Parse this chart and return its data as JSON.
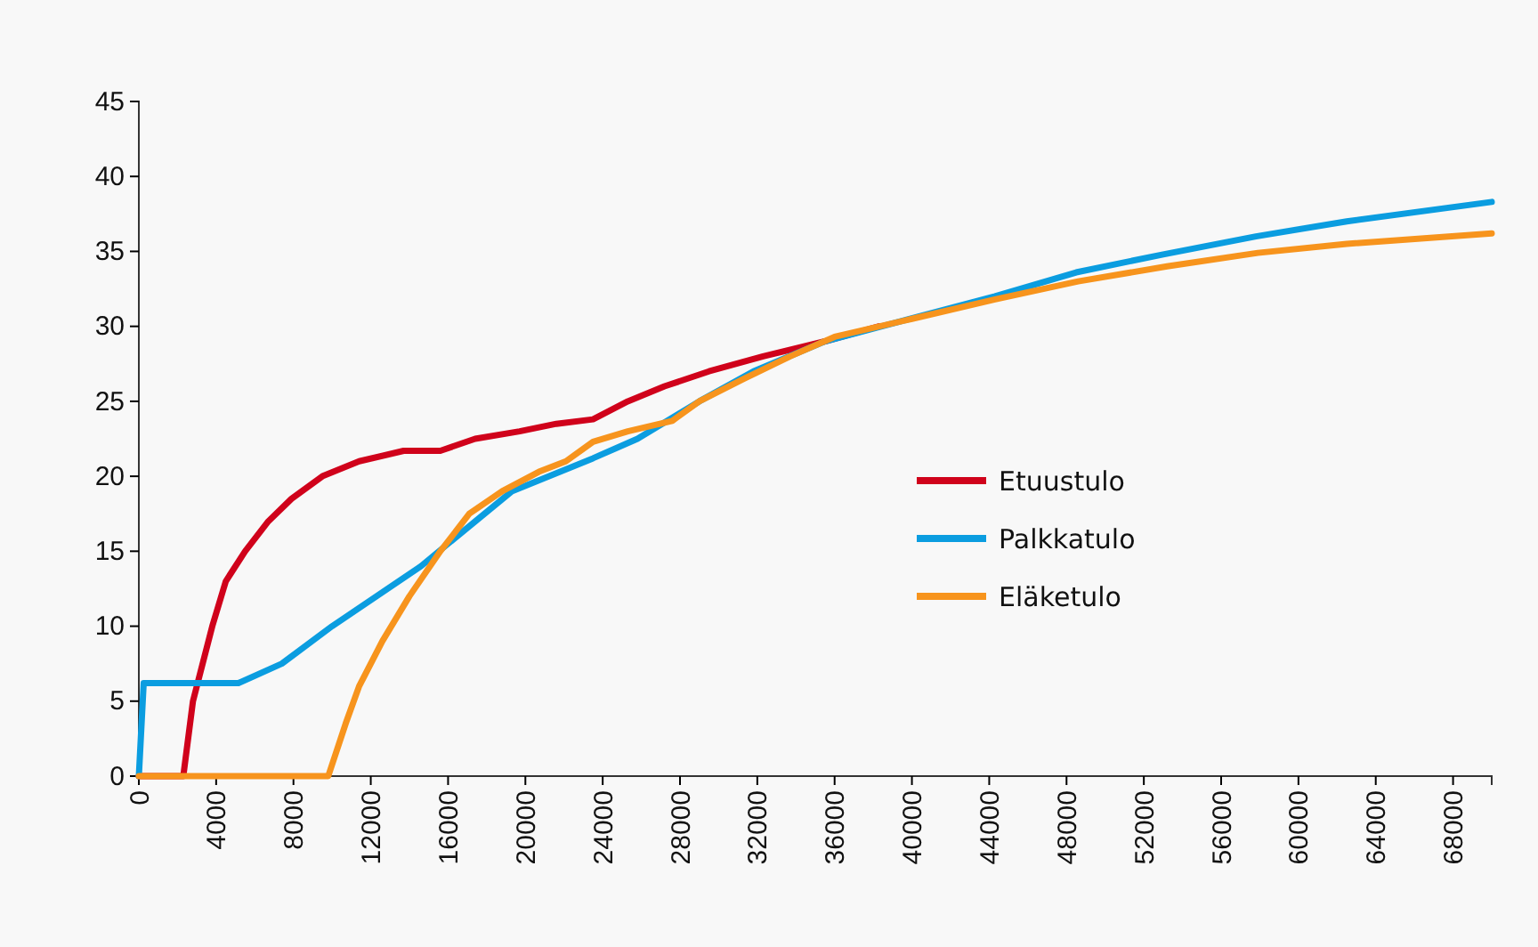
{
  "chart_data": {
    "type": "line",
    "xlim": [
      0,
      70000
    ],
    "xticks": [
      0,
      4000,
      8000,
      12000,
      16000,
      20000,
      24000,
      28000,
      32000,
      36000,
      40000,
      44000,
      48000,
      52000,
      56000,
      60000,
      64000,
      68000
    ],
    "ylim": [
      0,
      45
    ],
    "yticks": [
      0,
      5,
      10,
      15,
      20,
      25,
      30,
      35,
      40,
      45
    ],
    "legend": "right",
    "grid": false,
    "marker": "none",
    "line_style": "solid",
    "series": [
      {
        "name": "Etuustulo",
        "color": "#d0021b",
        "x": [
          0,
          2300,
          2800,
          3800,
          4500,
          5500,
          6700,
          7900,
          9500,
          11400,
          13700,
          15600,
          17400,
          19700,
          21600,
          23500,
          25300,
          27200,
          29500,
          32300,
          35500,
          38300
        ],
        "values": [
          0,
          0,
          5,
          10,
          13,
          15,
          17,
          18.5,
          20,
          21,
          21.7,
          21.7,
          22.5,
          23,
          23.5,
          23.8,
          25,
          26,
          27,
          28,
          29,
          30
        ]
      },
      {
        "name": "Palkkatulo",
        "color": "#0b9de0",
        "x": [
          0,
          250,
          5150,
          7400,
          10000,
          12300,
          14600,
          16000,
          19300,
          23500,
          25800,
          29000,
          31800,
          35500,
          44300,
          48500,
          53000,
          57800,
          62500,
          70000
        ],
        "values": [
          0,
          6.2,
          6.2,
          7.5,
          10,
          12,
          14,
          15.5,
          19,
          21.2,
          22.5,
          25,
          27,
          29,
          32,
          33.6,
          34.8,
          36,
          37,
          38.3
        ]
      },
      {
        "name": "Eläketulo",
        "color": "#f7941d",
        "x": [
          0,
          9800,
          10700,
          11400,
          12600,
          14000,
          15600,
          17100,
          18800,
          20700,
          22100,
          23500,
          25300,
          27600,
          29000,
          31300,
          33700,
          36000,
          40000,
          44300,
          48600,
          53200,
          57900,
          62500,
          70000
        ],
        "values": [
          0,
          0,
          3.5,
          6,
          9,
          12,
          15,
          17.5,
          19,
          20.3,
          21,
          22.3,
          23,
          23.7,
          25,
          26.5,
          28,
          29.3,
          30.5,
          31.8,
          33,
          34,
          34.9,
          35.5,
          36.2
        ]
      }
    ]
  }
}
